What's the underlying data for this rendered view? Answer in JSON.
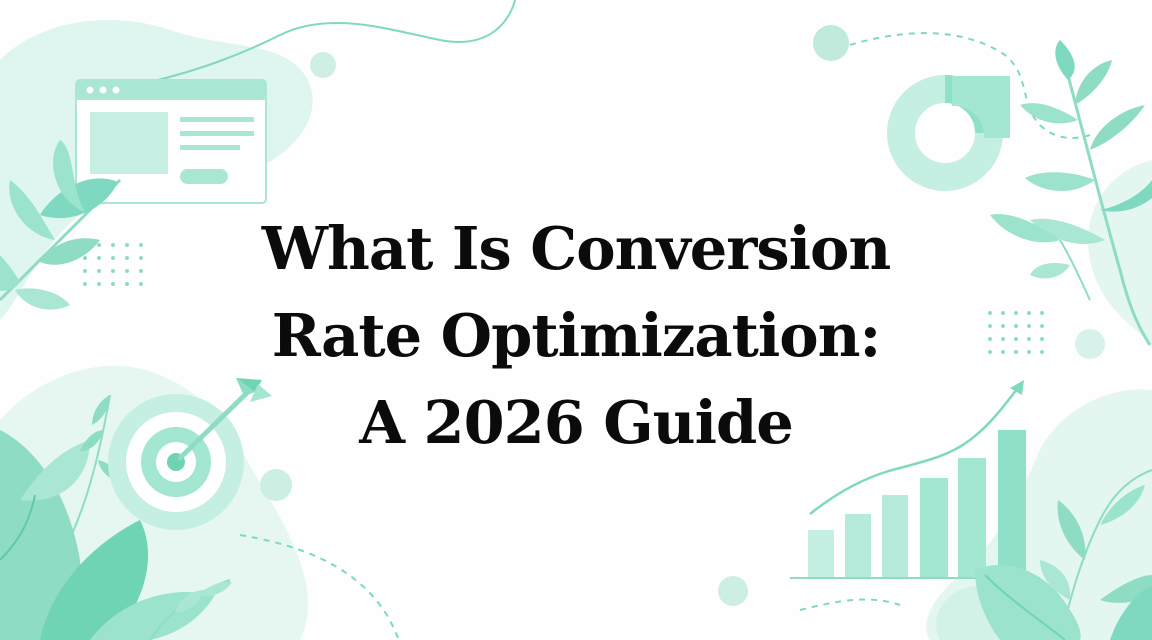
{
  "title": {
    "line1": "What Is Conversion",
    "line2": "Rate Optimization:",
    "line3": "A 2026 Guide"
  },
  "palette": {
    "mint_light": "#dcf5ee",
    "mint_mid": "#b6ebdc",
    "mint": "#8fe0c8",
    "mint_dark": "#6fd3b6",
    "text": "#0b0b0b"
  },
  "decorations": [
    "browser-window-icon",
    "donut-chart-icon",
    "target-icon",
    "arrow-icon",
    "growth-bar-chart-icon",
    "leaf-branch",
    "dot-grid"
  ]
}
